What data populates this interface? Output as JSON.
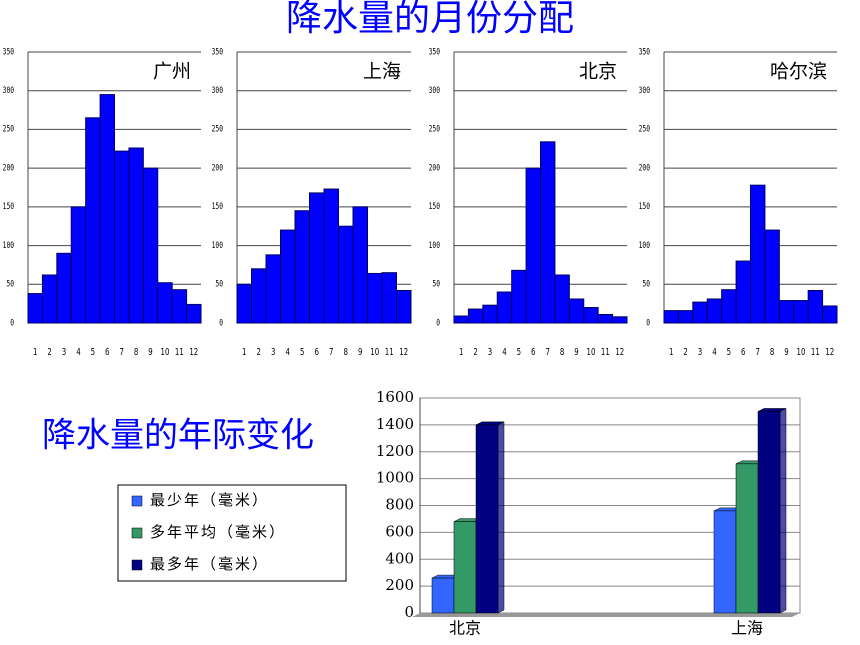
{
  "title": "降水量的月份分配",
  "subtitle": "降水量的年际变化",
  "chart_data": [
    {
      "type": "bar",
      "title": "广州",
      "categories": [
        "1",
        "2",
        "3",
        "4",
        "5",
        "6",
        "7",
        "8",
        "9",
        "10",
        "11",
        "12"
      ],
      "values": [
        38,
        62,
        90,
        150,
        265,
        295,
        222,
        226,
        200,
        52,
        43,
        24
      ],
      "color": "#0000ff",
      "ylim": [
        0,
        350
      ],
      "yticks": [
        0,
        50,
        100,
        150,
        200,
        250,
        300,
        350
      ],
      "grid": true
    },
    {
      "type": "bar",
      "title": "上海",
      "categories": [
        "1",
        "2",
        "3",
        "4",
        "5",
        "6",
        "7",
        "8",
        "9",
        "10",
        "11",
        "12"
      ],
      "values": [
        50,
        70,
        88,
        120,
        145,
        168,
        173,
        125,
        150,
        64,
        65,
        42
      ],
      "color": "#0000ff",
      "ylim": [
        0,
        350
      ],
      "yticks": [
        0,
        50,
        100,
        150,
        200,
        250,
        300,
        350
      ],
      "grid": true
    },
    {
      "type": "bar",
      "title": "北京",
      "categories": [
        "1",
        "2",
        "3",
        "4",
        "5",
        "6",
        "7",
        "8",
        "9",
        "10",
        "11",
        "12"
      ],
      "values": [
        9,
        18,
        23,
        40,
        68,
        200,
        234,
        62,
        31,
        20,
        11,
        8
      ],
      "color": "#0000ff",
      "ylim": [
        0,
        350
      ],
      "yticks": [
        0,
        50,
        100,
        150,
        200,
        250,
        300,
        350
      ],
      "grid": true
    },
    {
      "type": "bar",
      "title": "哈尔滨",
      "categories": [
        "1",
        "2",
        "3",
        "4",
        "5",
        "6",
        "7",
        "8",
        "9",
        "10",
        "11",
        "12"
      ],
      "values": [
        16,
        16,
        27,
        31,
        43,
        80,
        178,
        120,
        29,
        29,
        42,
        22
      ],
      "color": "#0000ff",
      "ylim": [
        0,
        350
      ],
      "yticks": [
        0,
        50,
        100,
        150,
        200,
        250,
        300,
        350
      ],
      "grid": true
    },
    {
      "type": "bar",
      "categories": [
        "北京",
        "上海"
      ],
      "series": [
        {
          "name": "最少年（毫米）",
          "color": "#3366ff",
          "values": [
            260,
            760
          ]
        },
        {
          "name": "多年平均（毫米）",
          "color": "#339966",
          "values": [
            680,
            1110
          ]
        },
        {
          "name": "最多年（毫米）",
          "color": "#000080",
          "values": [
            1400,
            1500
          ]
        }
      ],
      "ylim": [
        0,
        1600
      ],
      "yticks": [
        0,
        200,
        400,
        600,
        800,
        1000,
        1200,
        1400,
        1600
      ],
      "grid": true
    }
  ]
}
